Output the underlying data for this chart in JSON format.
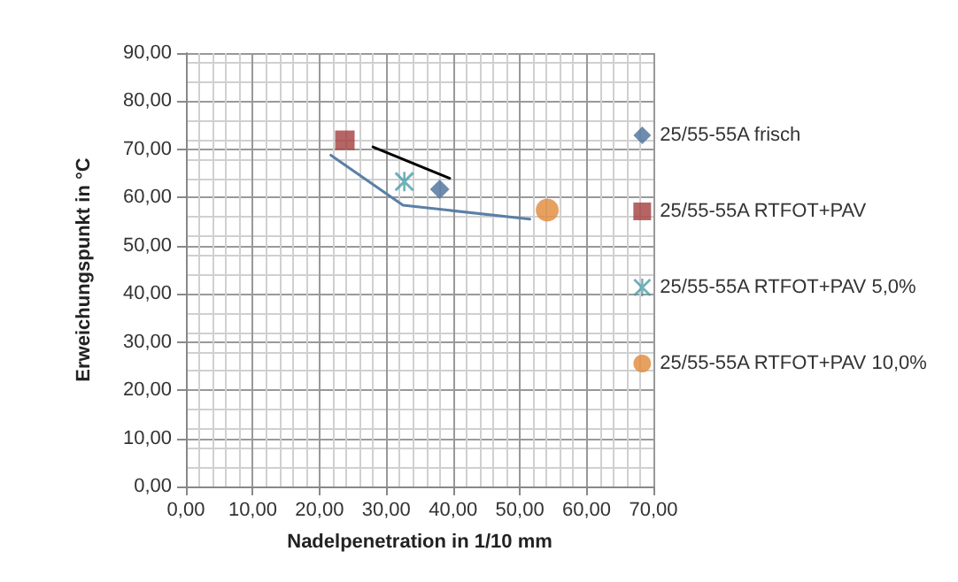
{
  "chart_data": {
    "type": "scatter",
    "xlabel": "Nadelpenetration in 1/10 mm",
    "ylabel": "Erweichungspunkt in °C",
    "xlim": [
      0,
      70
    ],
    "ylim": [
      0,
      90
    ],
    "xticks": [
      {
        "value": 0,
        "label": "0,00"
      },
      {
        "value": 10,
        "label": "10,00"
      },
      {
        "value": 20,
        "label": "20,00"
      },
      {
        "value": 30,
        "label": "30,00"
      },
      {
        "value": 40,
        "label": "40,00"
      },
      {
        "value": 50,
        "label": "50,00"
      },
      {
        "value": 60,
        "label": "60,00"
      },
      {
        "value": 70,
        "label": "70,00"
      }
    ],
    "yticks": [
      {
        "value": 0,
        "label": "0,00"
      },
      {
        "value": 10,
        "label": "10,00"
      },
      {
        "value": 20,
        "label": "20,00"
      },
      {
        "value": 30,
        "label": "30,00"
      },
      {
        "value": 40,
        "label": "40,00"
      },
      {
        "value": 50,
        "label": "50,00"
      },
      {
        "value": 60,
        "label": "60,00"
      },
      {
        "value": 70,
        "label": "70,00"
      },
      {
        "value": 80,
        "label": "80,00"
      },
      {
        "value": 90,
        "label": "90,00"
      }
    ],
    "grid": true,
    "legend": "right",
    "series": [
      {
        "name": "25/55-55A frisch",
        "color": "#4a6f9a",
        "marker": "diamond",
        "x": [
          38
        ],
        "values": [
          61.7
        ]
      },
      {
        "name": "25/55-55A RTFOT+PAV",
        "color": "#a33f3c",
        "marker": "square",
        "x": [
          23.8
        ],
        "values": [
          71.9
        ]
      },
      {
        "name": "25/55-55A RTFOT+PAV 5,0%",
        "color": "#4e9ea8",
        "marker": "cross",
        "x": [
          32.7
        ],
        "values": [
          63.3
        ]
      },
      {
        "name": "25/55-55A RTFOT+PAV 10,0%",
        "color": "#e0893a",
        "marker": "circle",
        "x": [
          54.1
        ],
        "values": [
          57.4
        ]
      },
      {
        "type": "line",
        "color": "#5b7fa6",
        "marker": "none",
        "line_style": "solid",
        "x": [
          21.7,
          32.5,
          51.5
        ],
        "values": [
          68.8,
          58.4,
          55.5
        ]
      },
      {
        "type": "line",
        "color": "#000000",
        "marker": "none",
        "line_style": "solid",
        "x": [
          39.5,
          28
        ],
        "values": [
          64,
          70.5
        ]
      }
    ]
  }
}
